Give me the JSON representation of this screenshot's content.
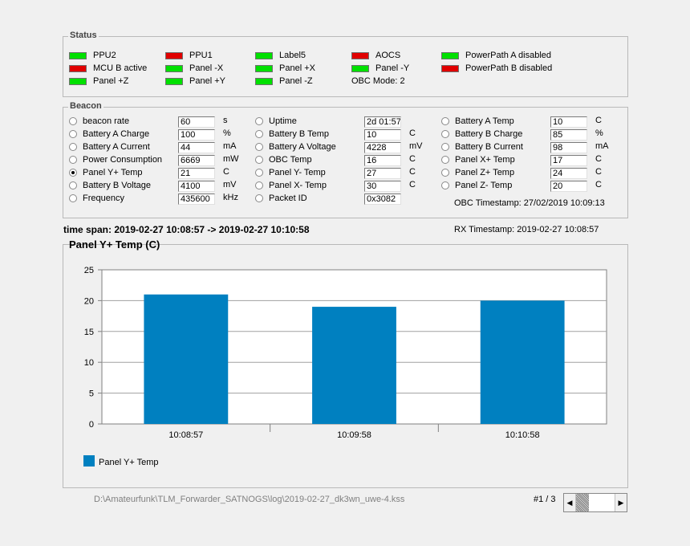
{
  "status": {
    "title": "Status",
    "items": [
      {
        "label": "PPU2",
        "color": "#00e000"
      },
      {
        "label": "MCU B active",
        "color": "#e00000"
      },
      {
        "label": "Panel +Z",
        "color": "#00e000"
      },
      {
        "label": "PPU1",
        "color": "#e00000"
      },
      {
        "label": "Panel -X",
        "color": "#00e000"
      },
      {
        "label": "Panel +Y",
        "color": "#00e000"
      },
      {
        "label": "Label5",
        "color": "#00e000"
      },
      {
        "label": "Panel +X",
        "color": "#00e000"
      },
      {
        "label": "Panel -Z",
        "color": "#00e000"
      },
      {
        "label": "AOCS",
        "color": "#e00000"
      },
      {
        "label": "Panel -Y",
        "color": "#00e000"
      },
      {
        "label": "PowerPath A disabled",
        "color": "#00e000"
      },
      {
        "label": "PowerPath B disabled",
        "color": "#e00000"
      }
    ],
    "obc_mode": "OBC Mode: 2"
  },
  "beacon": {
    "title": "Beacon",
    "col1": [
      {
        "label": "beacon rate",
        "value": "60",
        "unit": "s"
      },
      {
        "label": "Battery A Charge",
        "value": "100",
        "unit": "%"
      },
      {
        "label": "Battery A Current",
        "value": "44",
        "unit": "mA"
      },
      {
        "label": "Power Consumption",
        "value": "6669",
        "unit": "mW"
      },
      {
        "label": "Panel Y+ Temp",
        "value": "21",
        "unit": "C"
      },
      {
        "label": "Battery B Voltage",
        "value": "4100",
        "unit": "mV"
      },
      {
        "label": "Frequency",
        "value": "435600",
        "unit": "kHz"
      }
    ],
    "col2": [
      {
        "label": "Uptime",
        "value": "2d 01:57",
        "unit": ""
      },
      {
        "label": "Battery B Temp",
        "value": "10",
        "unit": "C"
      },
      {
        "label": "Battery A Voltage",
        "value": "4228",
        "unit": "mV"
      },
      {
        "label": "OBC Temp",
        "value": "16",
        "unit": "C"
      },
      {
        "label": "Panel Y- Temp",
        "value": "27",
        "unit": "C"
      },
      {
        "label": "Panel X- Temp",
        "value": "30",
        "unit": "C"
      },
      {
        "label": "Packet ID",
        "value": "0x3082",
        "unit": ""
      }
    ],
    "col3": [
      {
        "label": "Battery A Temp",
        "value": "10",
        "unit": "C"
      },
      {
        "label": "Battery B Charge",
        "value": "85",
        "unit": "%"
      },
      {
        "label": "Battery B Current",
        "value": "98",
        "unit": "mA"
      },
      {
        "label": "Panel X+ Temp",
        "value": "17",
        "unit": "C"
      },
      {
        "label": "Panel Z+ Temp",
        "value": "24",
        "unit": "C"
      },
      {
        "label": "Panel Z- Temp",
        "value": "20",
        "unit": "C"
      }
    ],
    "selected_label": "Panel Y+ Temp",
    "obc_timestamp": "OBC Timestamp: 27/02/2019 10:09:13"
  },
  "time_span": "time span: 2019-02-27 10:08:57 -> 2019-02-27 10:10:58",
  "rx_timestamp": "RX Timestamp: 2019-02-27 10:08:57",
  "chart_data": {
    "type": "bar",
    "title": "Panel Y+ Temp (C)",
    "categories": [
      "10:08:57",
      "10:09:58",
      "10:10:58"
    ],
    "series": [
      {
        "name": "Panel Y+ Temp",
        "values": [
          21,
          19,
          20
        ],
        "color": "#0080c0"
      }
    ],
    "ylim": [
      0,
      25
    ],
    "yticks": [
      "0",
      "5",
      "10",
      "15",
      "20",
      "25"
    ],
    "grid": true,
    "legend": "bottom-left"
  },
  "footer": {
    "file_path": "D:\\Amateurfunk\\TLM_Forwarder_SATNOGS\\log\\2019-02-27_dk3wn_uwe-4.kss",
    "page": "#1 / 3"
  }
}
